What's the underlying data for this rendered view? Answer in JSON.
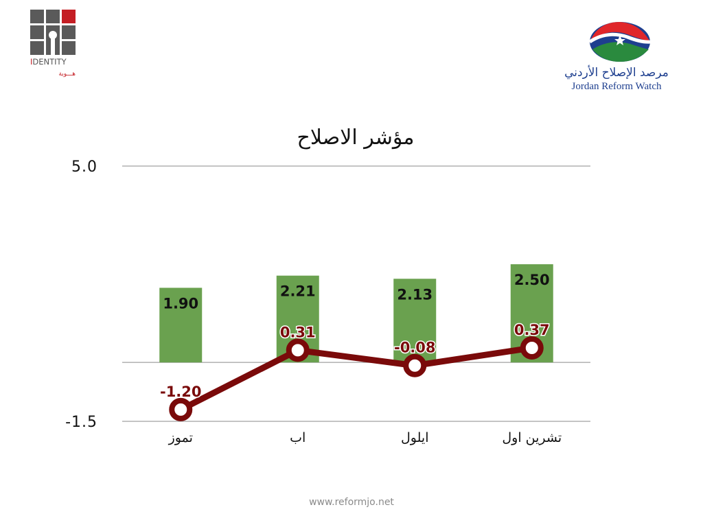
{
  "logos": {
    "identity": {
      "name": "IDENTITY",
      "name_prefix": "I",
      "name_rest": "DENTITY",
      "arabic": "هـــوية"
    },
    "reform_watch": {
      "arabic": "مرصد الإصلاح الأردني",
      "english": "Jordan Reform Watch"
    }
  },
  "chart_data": {
    "type": "bar",
    "title": "مؤشر الاصلاح",
    "categories": [
      "تموز",
      "اب",
      "ايلول",
      "تشرين اول"
    ],
    "series": [
      {
        "type": "bar",
        "values": [
          1.9,
          2.21,
          2.13,
          2.5
        ],
        "labels": [
          "1.90",
          "2.21",
          "2.13",
          "2.50"
        ],
        "color": "#6aa14f"
      },
      {
        "type": "line",
        "values": [
          -1.2,
          0.31,
          -0.08,
          0.37
        ],
        "labels": [
          "-1.20",
          "0.31",
          "-0.08",
          "0.37"
        ],
        "color": "#7a0a0a"
      }
    ],
    "ylim": [
      -1.5,
      5.0
    ],
    "yticks": [
      "5.0",
      "-1.5"
    ],
    "grid": true
  },
  "footer": {
    "url": "www.reformjo.net"
  },
  "colors": {
    "bar": "#6aa14f",
    "line": "#7a0a0a",
    "grid": "#a0a0a0",
    "logo_red": "#c41e24",
    "logo_blue": "#1e3f8f"
  }
}
